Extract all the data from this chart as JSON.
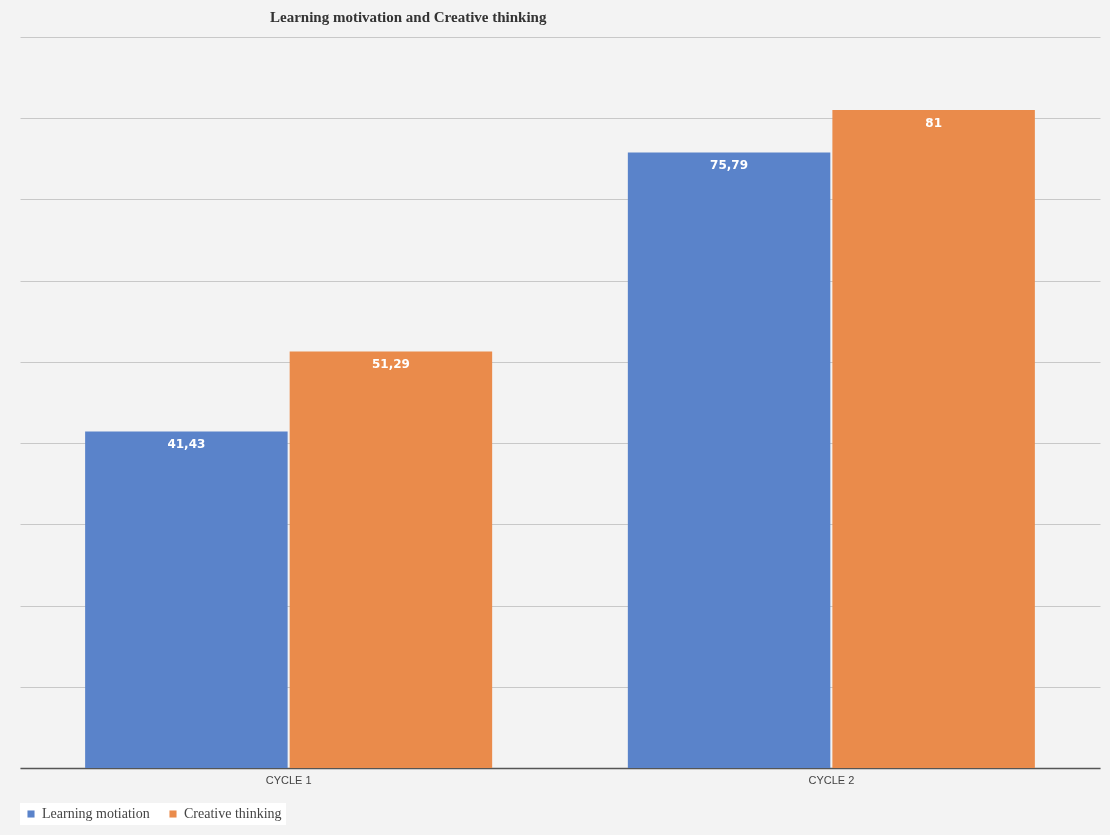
{
  "chart_data": {
    "type": "bar",
    "title": "Learning motivation and Creative thinking",
    "categories": [
      "CYCLE 1",
      "CYCLE 2"
    ],
    "series": [
      {
        "name": "Learning motiation",
        "color": "#5a83ca",
        "values": [
          41.43,
          75.79
        ],
        "value_labels": [
          "41,43",
          "75,79"
        ]
      },
      {
        "name": "Creative thinking",
        "color": "#ea8b4b",
        "values": [
          51.29,
          81
        ],
        "value_labels": [
          "51,29",
          "81"
        ]
      }
    ],
    "ylim": [
      0,
      90
    ],
    "yticks": [
      {
        "value": 0,
        "label": null
      },
      {
        "value": 10,
        "label": null
      },
      {
        "value": 20,
        "label": null
      },
      {
        "value": 30,
        "label": null
      },
      {
        "value": 40,
        "label": null
      },
      {
        "value": 50,
        "label": null
      },
      {
        "value": 60,
        "label": null
      },
      {
        "value": 70,
        "label": null
      },
      {
        "value": 80,
        "label": null
      },
      {
        "value": 90,
        "label": null
      }
    ],
    "tick_labels": "x",
    "grid": "y",
    "legend": "bottom"
  }
}
